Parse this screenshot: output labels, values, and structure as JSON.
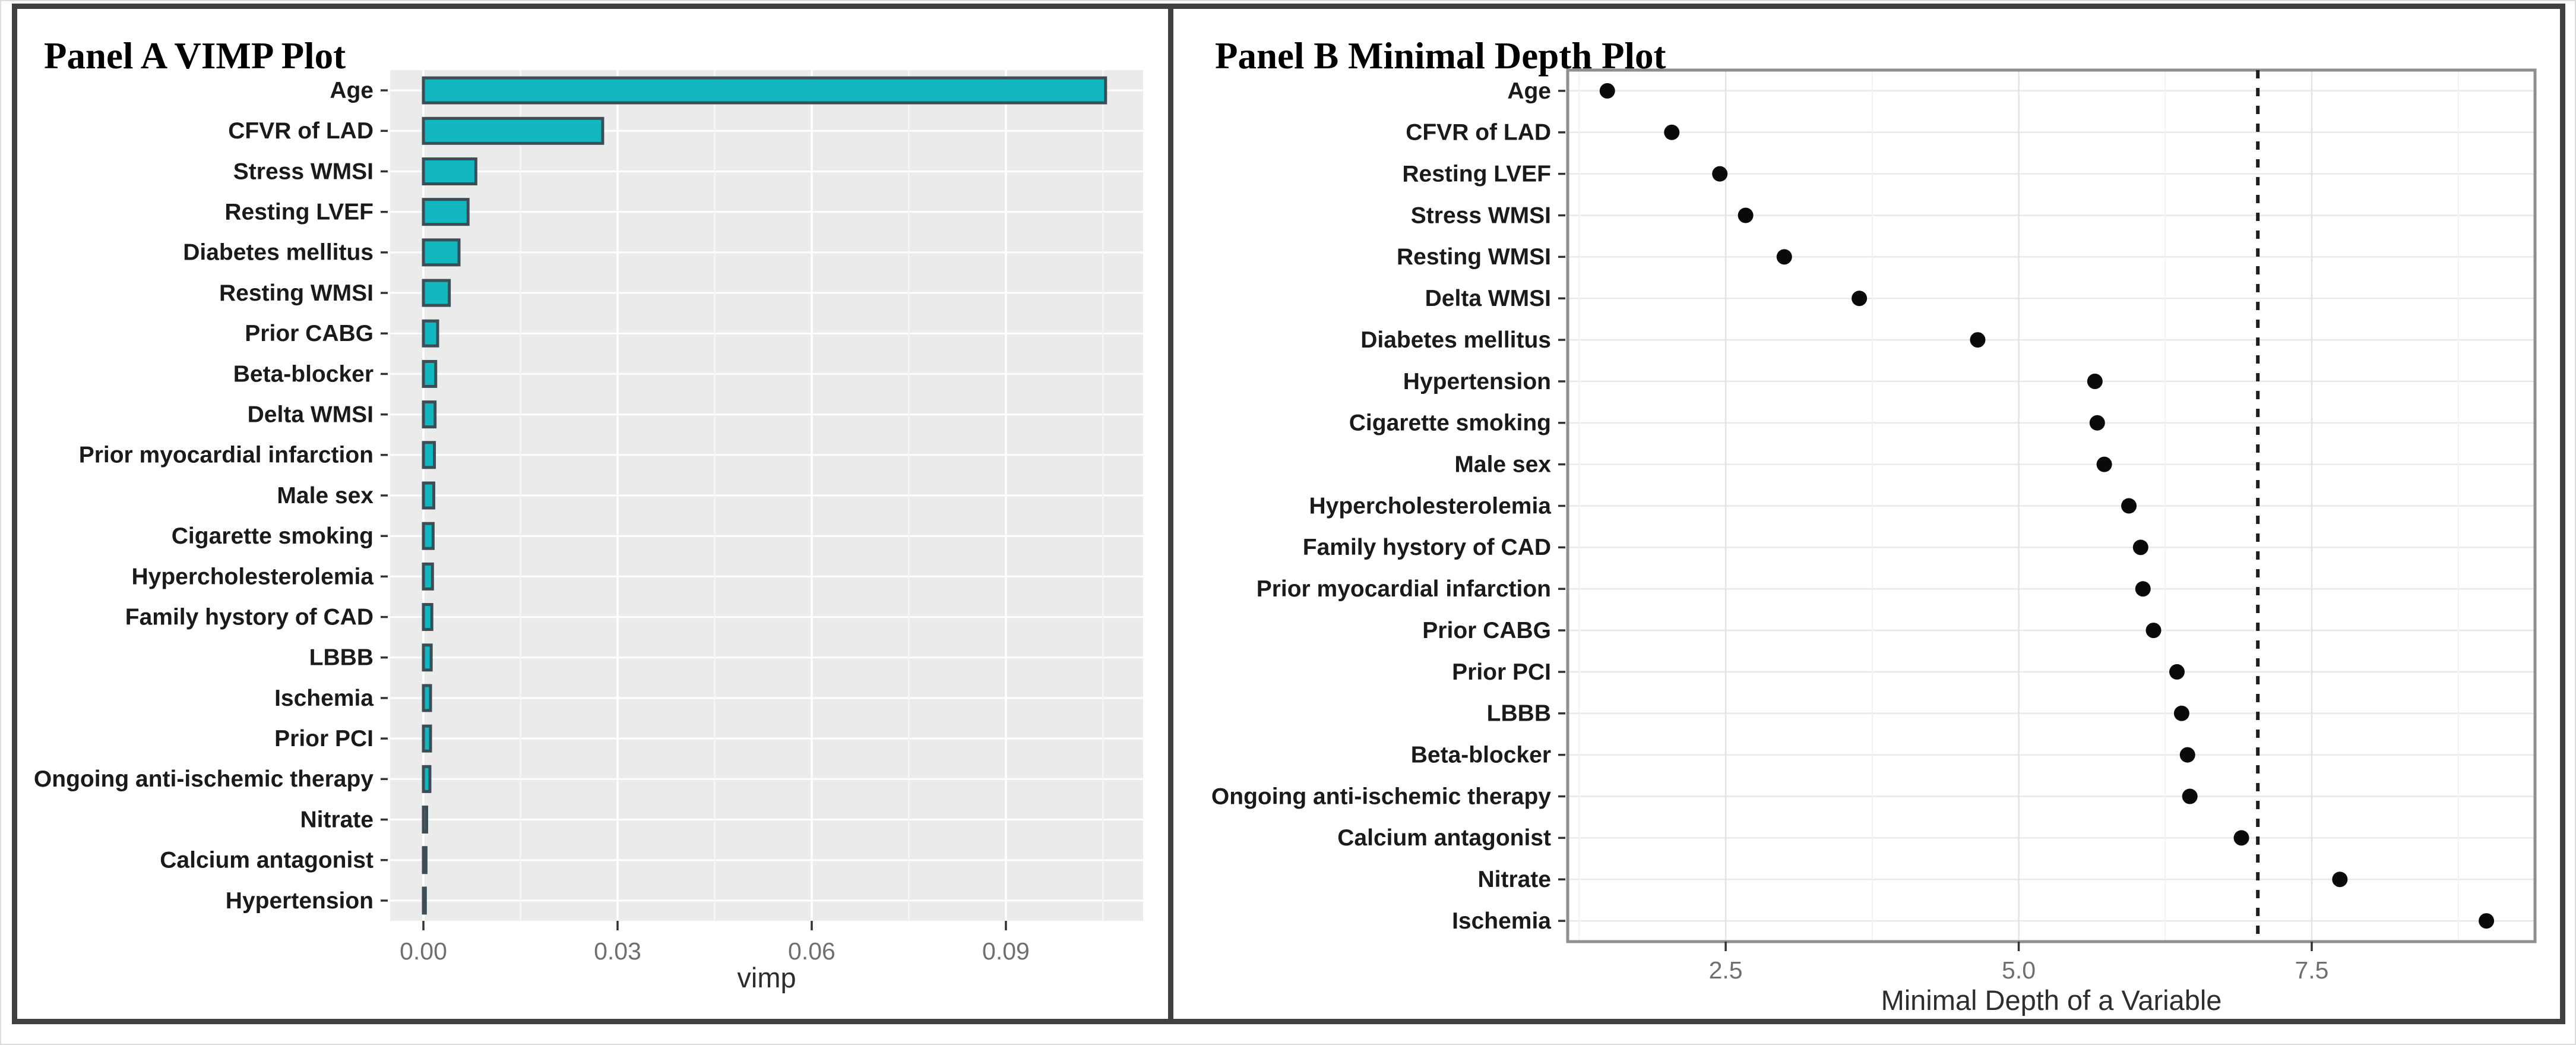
{
  "chart_data": [
    {
      "panel": "A",
      "type": "bar",
      "orientation": "horizontal",
      "title": "Panel A VIMP Plot",
      "xlabel": "vimp",
      "categories": [
        "Age",
        "CFVR of LAD",
        "Stress WMSI",
        "Resting LVEF",
        "Diabetes mellitus",
        "Resting WMSI",
        "Prior CABG",
        "Beta-blocker",
        "Delta WMSI",
        "Prior myocardial infarction",
        "Male sex",
        "Cigarette smoking",
        "Hypercholesterolemia",
        "Family hystory of CAD",
        "LBBB",
        "Ischemia",
        "Prior PCI",
        "Ongoing anti-ischemic therapy",
        "Nitrate",
        "Calcium antagonist",
        "Hypertension"
      ],
      "values": [
        0.1054,
        0.0277,
        0.0081,
        0.0069,
        0.0055,
        0.004,
        0.0022,
        0.0019,
        0.0018,
        0.0017,
        0.0016,
        0.0015,
        0.0014,
        0.0013,
        0.0012,
        0.0011,
        0.0011,
        0.001,
        0.0005,
        0.0004,
        0.0003
      ],
      "x_ticks": {
        "labels": [
          "0.00",
          "0.03",
          "0.06",
          "0.09"
        ],
        "values": [
          0,
          0.03,
          0.06,
          0.09
        ]
      },
      "x_minor_ticks": [
        0.015,
        0.045,
        0.075,
        0.105
      ],
      "xlim": [
        -0.00514,
        0.1112
      ],
      "grid": "on",
      "style": {
        "bar_fill": "#12b7bf",
        "bar_stroke": "#3c4d55",
        "panel_bg": "#ebebeb",
        "grid_major": "#ffffff",
        "grid_minor": "#f6f6f6",
        "tick_label_color": "#6f6f6f",
        "axis_title_color": "#2d2d2d",
        "category_label_color": "#1a1a1a",
        "tick_mark_color": "#333333"
      }
    },
    {
      "panel": "B",
      "type": "scatter",
      "title": "Panel B Minimal Depth Plot",
      "xlabel": "Minimal Depth of a Variable",
      "categories": [
        "Age",
        "CFVR of LAD",
        "Resting LVEF",
        "Stress WMSI",
        "Resting WMSI",
        "Delta WMSI",
        "Diabetes mellitus",
        "Hypertension",
        "Cigarette smoking",
        "Male sex",
        "Hypercholesterolemia",
        "Family hystory of CAD",
        "Prior myocardial infarction",
        "Prior CABG",
        "Prior PCI",
        "LBBB",
        "Beta-blocker",
        "Ongoing anti-ischemic therapy",
        "Calcium antagonist",
        "Nitrate",
        "Ischemia"
      ],
      "values": [
        1.49,
        2.04,
        2.45,
        2.67,
        3.0,
        3.64,
        4.65,
        5.65,
        5.67,
        5.73,
        5.94,
        6.04,
        6.06,
        6.15,
        6.35,
        6.39,
        6.44,
        6.46,
        6.9,
        7.74,
        8.99
      ],
      "threshold_line": 7.04,
      "x_ticks": {
        "labels": [
          "2.5",
          "5.0",
          "7.5"
        ],
        "values": [
          2.5,
          5.0,
          7.5
        ]
      },
      "x_minor_ticks": [
        1.25,
        3.75,
        6.25,
        8.75
      ],
      "xlim": [
        1.152,
        9.405
      ],
      "grid": "on",
      "style": {
        "dot_color": "#0a0a0a",
        "threshold_color": "#1e1e1e",
        "panel_bg": "#ffffff",
        "panel_border": "#8f8f8f",
        "grid_major": "#e3e3e3",
        "grid_minor": "#f2f2f2",
        "row_grid": "#e9e9e9",
        "tick_label_color": "#6f6f6f",
        "axis_title_color": "#2d2d2d",
        "category_label_color": "#1a1a1a",
        "tick_mark_color": "#333333"
      }
    }
  ],
  "frame": {
    "border_color": "#404040"
  }
}
